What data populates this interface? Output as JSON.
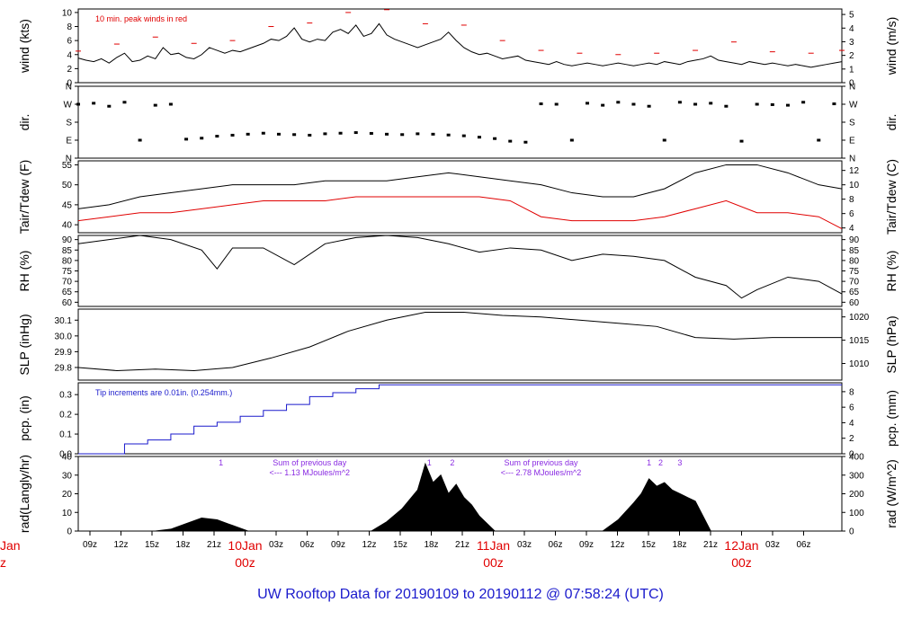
{
  "footer_title": "UW Rooftop Data for 20190109  to  20190112 @ 07:58:24  (UTC)",
  "colors": {
    "primary": "#000000",
    "peak": "#e00000",
    "dew": "#e00000",
    "precip": "#1a1acc",
    "note_purple": "#8a2be2",
    "day": "#e00000",
    "footer": "#1a1acc"
  },
  "x_axis": {
    "hour_labels": [
      "09z",
      "12z",
      "15z",
      "18z",
      "21z",
      "03z",
      "06z",
      "09z",
      "12z",
      "15z",
      "18z",
      "21z",
      "03z",
      "06z",
      "09z",
      "12z",
      "15z",
      "18z",
      "21z",
      "03z",
      "06z"
    ],
    "day_labels": [
      {
        "date": "10Jan",
        "time": "00z"
      },
      {
        "date": "11Jan",
        "time": "00z"
      },
      {
        "date": "12Jan",
        "time": "00z"
      }
    ],
    "cutoff_labels": {
      "date": "Jan",
      "time": "z"
    }
  },
  "chart_data": [
    {
      "type": "line",
      "id": "wind",
      "ylabel_left": "wind (kts)",
      "ylabel_right": "wind (m/s)",
      "ylim": [
        0,
        10.5
      ],
      "ticks_left": [
        "0",
        "2",
        "4",
        "6",
        "8",
        "10"
      ],
      "ticks_right": [
        "0",
        "1",
        "2",
        "3",
        "4",
        "5"
      ],
      "annotation": "10 min. peak winds in red",
      "series": [
        {
          "name": "wind",
          "x": [
            0,
            1,
            2,
            3,
            4,
            5,
            6,
            7,
            8,
            9,
            10,
            11,
            12,
            13,
            14,
            15,
            16,
            17,
            18,
            19,
            20,
            21,
            22,
            23,
            24,
            25,
            26,
            27,
            28,
            29,
            30,
            31,
            32,
            33,
            34,
            35,
            36,
            37,
            38,
            39,
            40,
            41,
            42,
            43,
            44,
            45,
            46,
            47,
            48,
            49,
            50,
            51,
            52,
            53,
            54,
            55,
            56,
            57,
            58,
            59,
            60,
            61,
            62,
            63,
            64,
            65,
            66,
            67,
            68,
            69,
            70,
            71,
            72,
            73,
            74,
            75,
            76,
            77,
            78,
            79,
            80,
            81,
            82,
            83,
            84,
            85,
            86,
            87,
            88,
            89,
            90,
            91,
            92,
            93,
            94,
            95,
            96,
            97,
            98,
            99
          ],
          "values": [
            3.5,
            3.2,
            3.0,
            3.4,
            2.8,
            3.6,
            4.2,
            3.0,
            3.2,
            3.8,
            3.4,
            5.0,
            4.0,
            4.2,
            3.6,
            3.4,
            4.0,
            5.0,
            4.6,
            4.2,
            4.6,
            4.4,
            4.8,
            5.2,
            5.6,
            6.2,
            6.0,
            6.6,
            7.8,
            6.2,
            5.8,
            6.2,
            6.0,
            7.2,
            7.6,
            7.0,
            8.2,
            6.6,
            7.0,
            8.4,
            6.8,
            6.2,
            5.8,
            5.4,
            5.0,
            5.4,
            5.8,
            6.2,
            7.2,
            6.0,
            5.0,
            4.4,
            4.0,
            4.2,
            3.8,
            3.4,
            3.6,
            3.8,
            3.2,
            3.0,
            2.8,
            2.6,
            3.0,
            2.6,
            2.4,
            2.6,
            2.8,
            2.6,
            2.4,
            2.6,
            2.8,
            2.6,
            2.4,
            2.6,
            2.8,
            2.6,
            3.0,
            2.8,
            2.6,
            3.0,
            3.2,
            3.4,
            3.8,
            3.2,
            3.0,
            2.8,
            2.6,
            3.0,
            2.8,
            2.6,
            2.8,
            2.6,
            2.4,
            2.6,
            2.4,
            2.2,
            2.4,
            2.6,
            2.8,
            3.0
          ]
        },
        {
          "name": "10 min. peak",
          "x": [
            0,
            5,
            10,
            15,
            20,
            25,
            30,
            35,
            40,
            45,
            50,
            55,
            60,
            65,
            70,
            75,
            80,
            85,
            90,
            95,
            99
          ],
          "values": [
            4.5,
            5.5,
            6.5,
            5.6,
            6.0,
            8.0,
            8.5,
            10.0,
            10.4,
            8.4,
            8.2,
            6.0,
            4.6,
            4.2,
            4.0,
            4.2,
            4.6,
            5.8,
            4.4,
            4.2,
            4.6
          ]
        }
      ]
    },
    {
      "type": "scatter",
      "id": "dir",
      "ylabel_left": "dir.",
      "ylabel_right": "dir.",
      "ylim": [
        0,
        360
      ],
      "ticks_left": [
        "N",
        "E",
        "S",
        "W",
        "N"
      ],
      "ticks_right": [
        "N",
        "E",
        "S",
        "W",
        "N"
      ],
      "series": [
        {
          "name": "direction",
          "x": [
            0,
            2,
            4,
            6,
            8,
            10,
            12,
            14,
            16,
            18,
            20,
            22,
            24,
            26,
            28,
            30,
            32,
            34,
            36,
            38,
            40,
            42,
            44,
            46,
            48,
            50,
            52,
            54,
            56,
            58,
            60,
            62,
            64,
            66,
            68,
            70,
            72,
            74,
            76,
            78,
            80,
            82,
            84,
            86,
            88,
            90,
            92,
            94,
            96,
            98
          ],
          "values": [
            270,
            275,
            260,
            280,
            90,
            265,
            270,
            95,
            100,
            110,
            115,
            120,
            125,
            120,
            118,
            115,
            122,
            125,
            128,
            124,
            120,
            118,
            122,
            120,
            116,
            112,
            105,
            98,
            85,
            80,
            272,
            270,
            90,
            275,
            265,
            280,
            270,
            260,
            90,
            280,
            270,
            275,
            260,
            85,
            270,
            268,
            265,
            280,
            90,
            272
          ]
        }
      ]
    },
    {
      "type": "line",
      "id": "temp",
      "ylabel_left": "Tair/Tdew (F)",
      "ylabel_right": "Tair/Tdew (C)",
      "ylim": [
        38,
        56
      ],
      "ticks_left": [
        "40",
        "45",
        "50",
        "55"
      ],
      "ticks_right": [
        "4",
        "6",
        "8",
        "10",
        "12"
      ],
      "series": [
        {
          "name": "Tair",
          "x": [
            0,
            4,
            8,
            12,
            16,
            20,
            24,
            28,
            32,
            36,
            40,
            44,
            48,
            52,
            56,
            60,
            64,
            68,
            72,
            76,
            80,
            84,
            88,
            92,
            96,
            99
          ],
          "values": [
            44,
            45,
            47,
            48,
            49,
            50,
            50,
            50,
            51,
            51,
            51,
            52,
            53,
            52,
            51,
            50,
            48,
            47,
            47,
            49,
            53,
            55,
            55,
            53,
            50,
            49
          ]
        },
        {
          "name": "Tdew",
          "x": [
            0,
            4,
            8,
            12,
            16,
            20,
            24,
            28,
            32,
            36,
            40,
            44,
            48,
            52,
            56,
            60,
            64,
            68,
            72,
            76,
            80,
            84,
            88,
            92,
            96,
            99
          ],
          "values": [
            41,
            42,
            43,
            43,
            44,
            45,
            46,
            46,
            46,
            47,
            47,
            47,
            47,
            47,
            46,
            42,
            41,
            41,
            41,
            42,
            44,
            46,
            43,
            43,
            42,
            39
          ]
        }
      ]
    },
    {
      "type": "line",
      "id": "rh",
      "ylabel_left": "RH (%)",
      "ylabel_right": "RH (%)",
      "ylim": [
        58,
        92
      ],
      "ticks_left": [
        "60",
        "65",
        "70",
        "75",
        "80",
        "85",
        "90"
      ],
      "ticks_right": [
        "60",
        "65",
        "70",
        "75",
        "80",
        "85",
        "90"
      ],
      "series": [
        {
          "name": "RH",
          "x": [
            0,
            4,
            8,
            12,
            16,
            18,
            20,
            24,
            28,
            32,
            36,
            40,
            44,
            48,
            52,
            56,
            60,
            64,
            68,
            72,
            76,
            80,
            84,
            86,
            88,
            92,
            96,
            99
          ],
          "values": [
            88,
            90,
            92,
            90,
            85,
            76,
            86,
            86,
            78,
            88,
            91,
            92,
            91,
            88,
            84,
            86,
            85,
            80,
            83,
            82,
            80,
            72,
            68,
            62,
            66,
            72,
            70,
            64
          ]
        }
      ]
    },
    {
      "type": "line",
      "id": "slp",
      "ylabel_left": "SLP (inHg)",
      "ylabel_right": "SLP (hPa)",
      "ylim": [
        29.72,
        30.17
      ],
      "ticks_left": [
        "29.8",
        "29.9",
        "30.0",
        "30.1"
      ],
      "ticks_right": [
        "1010",
        "1015",
        "1020"
      ],
      "series": [
        {
          "name": "SLP",
          "x": [
            0,
            5,
            10,
            15,
            20,
            25,
            30,
            35,
            40,
            45,
            50,
            55,
            60,
            65,
            70,
            75,
            80,
            85,
            90,
            95,
            99
          ],
          "values": [
            29.8,
            29.78,
            29.79,
            29.78,
            29.8,
            29.86,
            29.93,
            30.03,
            30.1,
            30.15,
            30.15,
            30.13,
            30.12,
            30.1,
            30.08,
            30.06,
            29.99,
            29.98,
            29.99,
            29.99,
            29.99
          ]
        }
      ]
    },
    {
      "type": "line",
      "id": "pcp",
      "ylabel_left": "pcp. (in)",
      "ylabel_right": "pcp. (mm)",
      "ylim": [
        0,
        0.36
      ],
      "ticks_left": [
        "0.0",
        "0.1",
        "0.2",
        "0.3"
      ],
      "ticks_right": [
        "0",
        "2",
        "4",
        "6",
        "8"
      ],
      "annotation": "Tip increments are 0.01in. (0.254mm.)",
      "series": [
        {
          "name": "pcp",
          "x": [
            0,
            3,
            6,
            9,
            12,
            15,
            18,
            21,
            24,
            27,
            30,
            33,
            36,
            39,
            40,
            99
          ],
          "values": [
            0.0,
            0.0,
            0.05,
            0.07,
            0.1,
            0.14,
            0.16,
            0.19,
            0.22,
            0.25,
            0.29,
            0.31,
            0.33,
            0.35,
            0.35,
            0.35
          ]
        }
      ]
    },
    {
      "type": "area",
      "id": "rad",
      "ylabel_left": "rad(Langly/hr)",
      "ylabel_right": "rad (W/m^2)",
      "ylim": [
        0,
        40
      ],
      "ticks_left": [
        "0",
        "10",
        "20",
        "30",
        "40"
      ],
      "ticks_right": [
        "0",
        "100",
        "200",
        "300",
        "400"
      ],
      "annotations": [
        {
          "label": "1",
          "x": 18.5
        },
        {
          "label": "Sum of previous day",
          "x": 30
        },
        {
          "label": "<--- 1.13 MJoules/m^2",
          "x": 30
        },
        {
          "label": "1",
          "x": 45.5
        },
        {
          "label": "2",
          "x": 48.5
        },
        {
          "label": "Sum of previous day",
          "x": 60
        },
        {
          "label": "<--- 2.78 MJoules/m^2",
          "x": 60
        },
        {
          "label": "1",
          "x": 74
        },
        {
          "label": "2",
          "x": 75.5
        },
        {
          "label": "3",
          "x": 78
        }
      ],
      "series": [
        {
          "name": "radiation",
          "x": [
            0,
            10,
            12,
            14,
            16,
            18,
            20,
            22,
            38,
            40,
            42,
            44,
            45,
            46,
            47,
            48,
            49,
            50,
            51,
            52,
            54,
            68,
            70,
            72,
            73,
            74,
            75,
            76,
            77,
            78,
            79,
            80,
            82,
            99
          ],
          "values": [
            0,
            0,
            1,
            4,
            7,
            6,
            3,
            0,
            0,
            5,
            12,
            22,
            36,
            26,
            30,
            20,
            25,
            18,
            14,
            8,
            0,
            0,
            6,
            15,
            20,
            28,
            24,
            26,
            22,
            20,
            18,
            16,
            0,
            0
          ]
        }
      ]
    }
  ]
}
